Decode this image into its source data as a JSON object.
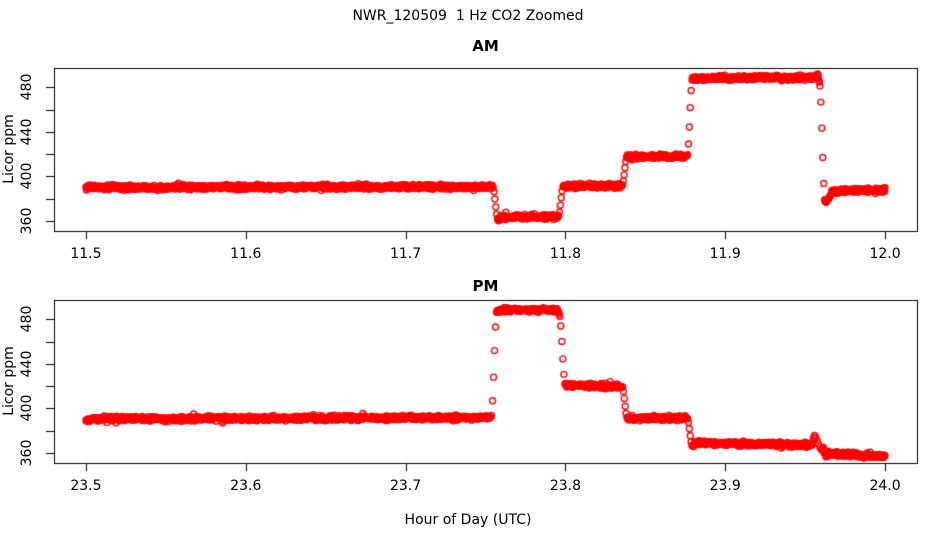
{
  "window": {
    "title": "NWR_120509  1 Hz CO2 Zoomed"
  },
  "labels": {
    "x_axis": "Hour of Day (UTC)",
    "y_axis": "Licor ppm"
  },
  "colors": {
    "data_points": "#FF0000",
    "axis": "#000000",
    "text": "#000000",
    "background": "#FFFFFF"
  },
  "chart_data": [
    {
      "type": "scatter",
      "panel_title": "AM",
      "ylabel": "Licor ppm",
      "marker": "open-circle",
      "color": "#FF0000",
      "sample_rate_hz": 1,
      "grid": false,
      "xlim": [
        11.48,
        12.02
      ],
      "ylim": [
        351.0,
        497.5
      ],
      "xticks": [
        11.5,
        11.6,
        11.7,
        11.8,
        11.9,
        12.0
      ],
      "xtick_labels": [
        "11.5",
        "11.6",
        "11.7",
        "11.8",
        "11.9",
        "12.0"
      ],
      "yticks_labeled": [
        360,
        400,
        440,
        480
      ],
      "ytick_labels": [
        "360",
        "400",
        "440",
        "480"
      ],
      "yticks_minor": [
        380,
        420,
        460
      ],
      "noise_sd_ppm": 1.0,
      "segments": [
        {
          "t_start": 11.5,
          "t_end": 11.7545,
          "ppm_start": 390.2,
          "ppm_end": 390.8
        },
        {
          "t_start": 11.7578,
          "t_end": 11.7955,
          "ppm_start": 363.8,
          "ppm_end": 363.8,
          "approach_from": 361.5,
          "approach_dur": 0.003
        },
        {
          "t_start": 11.7988,
          "t_end": 11.8355,
          "ppm_start": 391.2,
          "ppm_end": 391.8
        },
        {
          "t_start": 11.8385,
          "t_end": 11.8762,
          "ppm_start": 417.5,
          "ppm_end": 418.2
        },
        {
          "t_start": 11.8795,
          "t_end": 11.959,
          "ppm_start": 488.2,
          "ppm_end": 489.0,
          "end_to": 483.5,
          "end_dur": 0.0008
        },
        {
          "t_start": 11.9625,
          "t_end": 12.0,
          "ppm_start": 386.8,
          "ppm_end": 388.0,
          "approach_from": 377.0,
          "approach_dur": 0.0055
        }
      ]
    },
    {
      "type": "scatter",
      "panel_title": "PM",
      "xlabel": "Hour of Day (UTC)",
      "ylabel": "Licor ppm",
      "marker": "open-circle",
      "color": "#FF0000",
      "sample_rate_hz": 1,
      "grid": false,
      "xlim": [
        23.48,
        24.02
      ],
      "ylim": [
        351.0,
        497.5
      ],
      "xticks": [
        23.5,
        23.6,
        23.7,
        23.8,
        23.9,
        24.0
      ],
      "xtick_labels": [
        "23.5",
        "23.6",
        "23.7",
        "23.8",
        "23.9",
        "24.0"
      ],
      "yticks_labeled": [
        360,
        400,
        440,
        480
      ],
      "ytick_labels": [
        "360",
        "400",
        "440",
        "480"
      ],
      "yticks_minor": [
        380,
        420,
        460
      ],
      "noise_sd_ppm": 1.0,
      "segments": [
        {
          "t_start": 23.5,
          "t_end": 23.7535,
          "ppm_start": 390.6,
          "ppm_end": 391.9
        },
        {
          "t_start": 23.7572,
          "t_end": 23.7962,
          "ppm_start": 488.3,
          "ppm_end": 489.0,
          "end_to": 484.0,
          "end_dur": 0.0008
        },
        {
          "t_start": 23.8,
          "t_end": 23.8355,
          "ppm_start": 420.8,
          "ppm_end": 419.8
        },
        {
          "t_start": 23.8388,
          "t_end": 23.8762,
          "ppm_start": 391.3,
          "ppm_end": 391.3
        },
        {
          "t_start": 23.8795,
          "t_end": 23.9555,
          "ppm_start": 369.2,
          "ppm_end": 367.2,
          "approach_from": 366.0,
          "approach_dur": 0.0015,
          "end_to": 376.0,
          "end_dur": 0.001
        },
        {
          "t_start": 23.9605,
          "t_end": 24.0,
          "ppm_start": 359.3,
          "ppm_end": 357.2,
          "approach_from": 362.8,
          "approach_dur": 0.003
        }
      ]
    }
  ]
}
